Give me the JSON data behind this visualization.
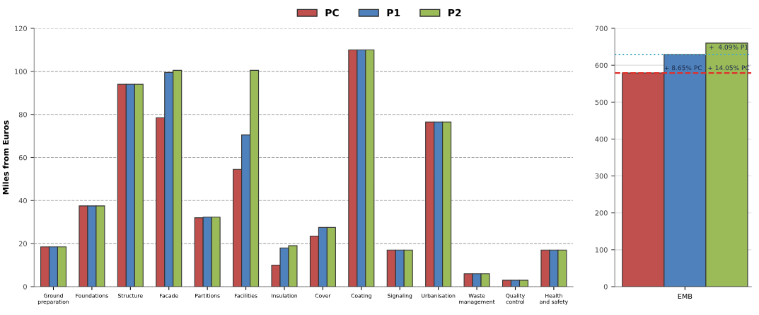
{
  "chart_data": [
    {
      "type": "bar",
      "ylabel": "Miles from Euros",
      "legend": "top",
      "grid": "y",
      "categories": [
        "Ground preparation",
        "Foundations",
        "Structure",
        "Facade",
        "Partitions",
        "Facilities",
        "Insulation",
        "Cover",
        "Coating",
        "Signaling",
        "Urbanisation",
        "Waste management",
        "Quality control",
        "Health and safety"
      ],
      "ylim": [
        0,
        120
      ],
      "yticks": [
        0,
        20,
        40,
        60,
        80,
        100,
        120
      ],
      "series": [
        {
          "name": "PC",
          "color": "#c0504d",
          "values": [
            18.5,
            37.5,
            94,
            78.5,
            32,
            54.5,
            10,
            23.5,
            110,
            17,
            76.5,
            6,
            3,
            17
          ]
        },
        {
          "name": "P1",
          "color": "#4f81bd",
          "values": [
            18.5,
            37.5,
            94,
            99.5,
            32.3,
            70.5,
            18,
            27.5,
            110,
            17,
            76.5,
            6,
            3,
            17
          ]
        },
        {
          "name": "P2",
          "color": "#9bbb59",
          "values": [
            18.5,
            37.5,
            94,
            100.5,
            32.3,
            100.5,
            19,
            27.5,
            110,
            17,
            76.5,
            6,
            3,
            17
          ]
        }
      ]
    },
    {
      "type": "bar",
      "grid": "y",
      "categories": [
        "EMB"
      ],
      "ylim": [
        0,
        700
      ],
      "yticks": [
        0,
        100,
        200,
        300,
        400,
        500,
        600,
        700
      ],
      "series": [
        {
          "color": "#c0504d",
          "values": [
            579
          ]
        },
        {
          "color": "#4f81bd",
          "values": [
            629
          ]
        },
        {
          "color": "#9bbb59",
          "values": [
            660
          ]
        }
      ],
      "ref_lines": [
        {
          "axis": "y",
          "value": 579,
          "color": "#e0302a",
          "line_style": "dashed"
        },
        {
          "axis": "y",
          "value": 629,
          "color": "#4bacc6",
          "line_style": "dotted"
        }
      ],
      "annotations": [
        "+ 8.65% PC",
        "+ 14.05% PC",
        "+  4.09% P1"
      ]
    }
  ]
}
